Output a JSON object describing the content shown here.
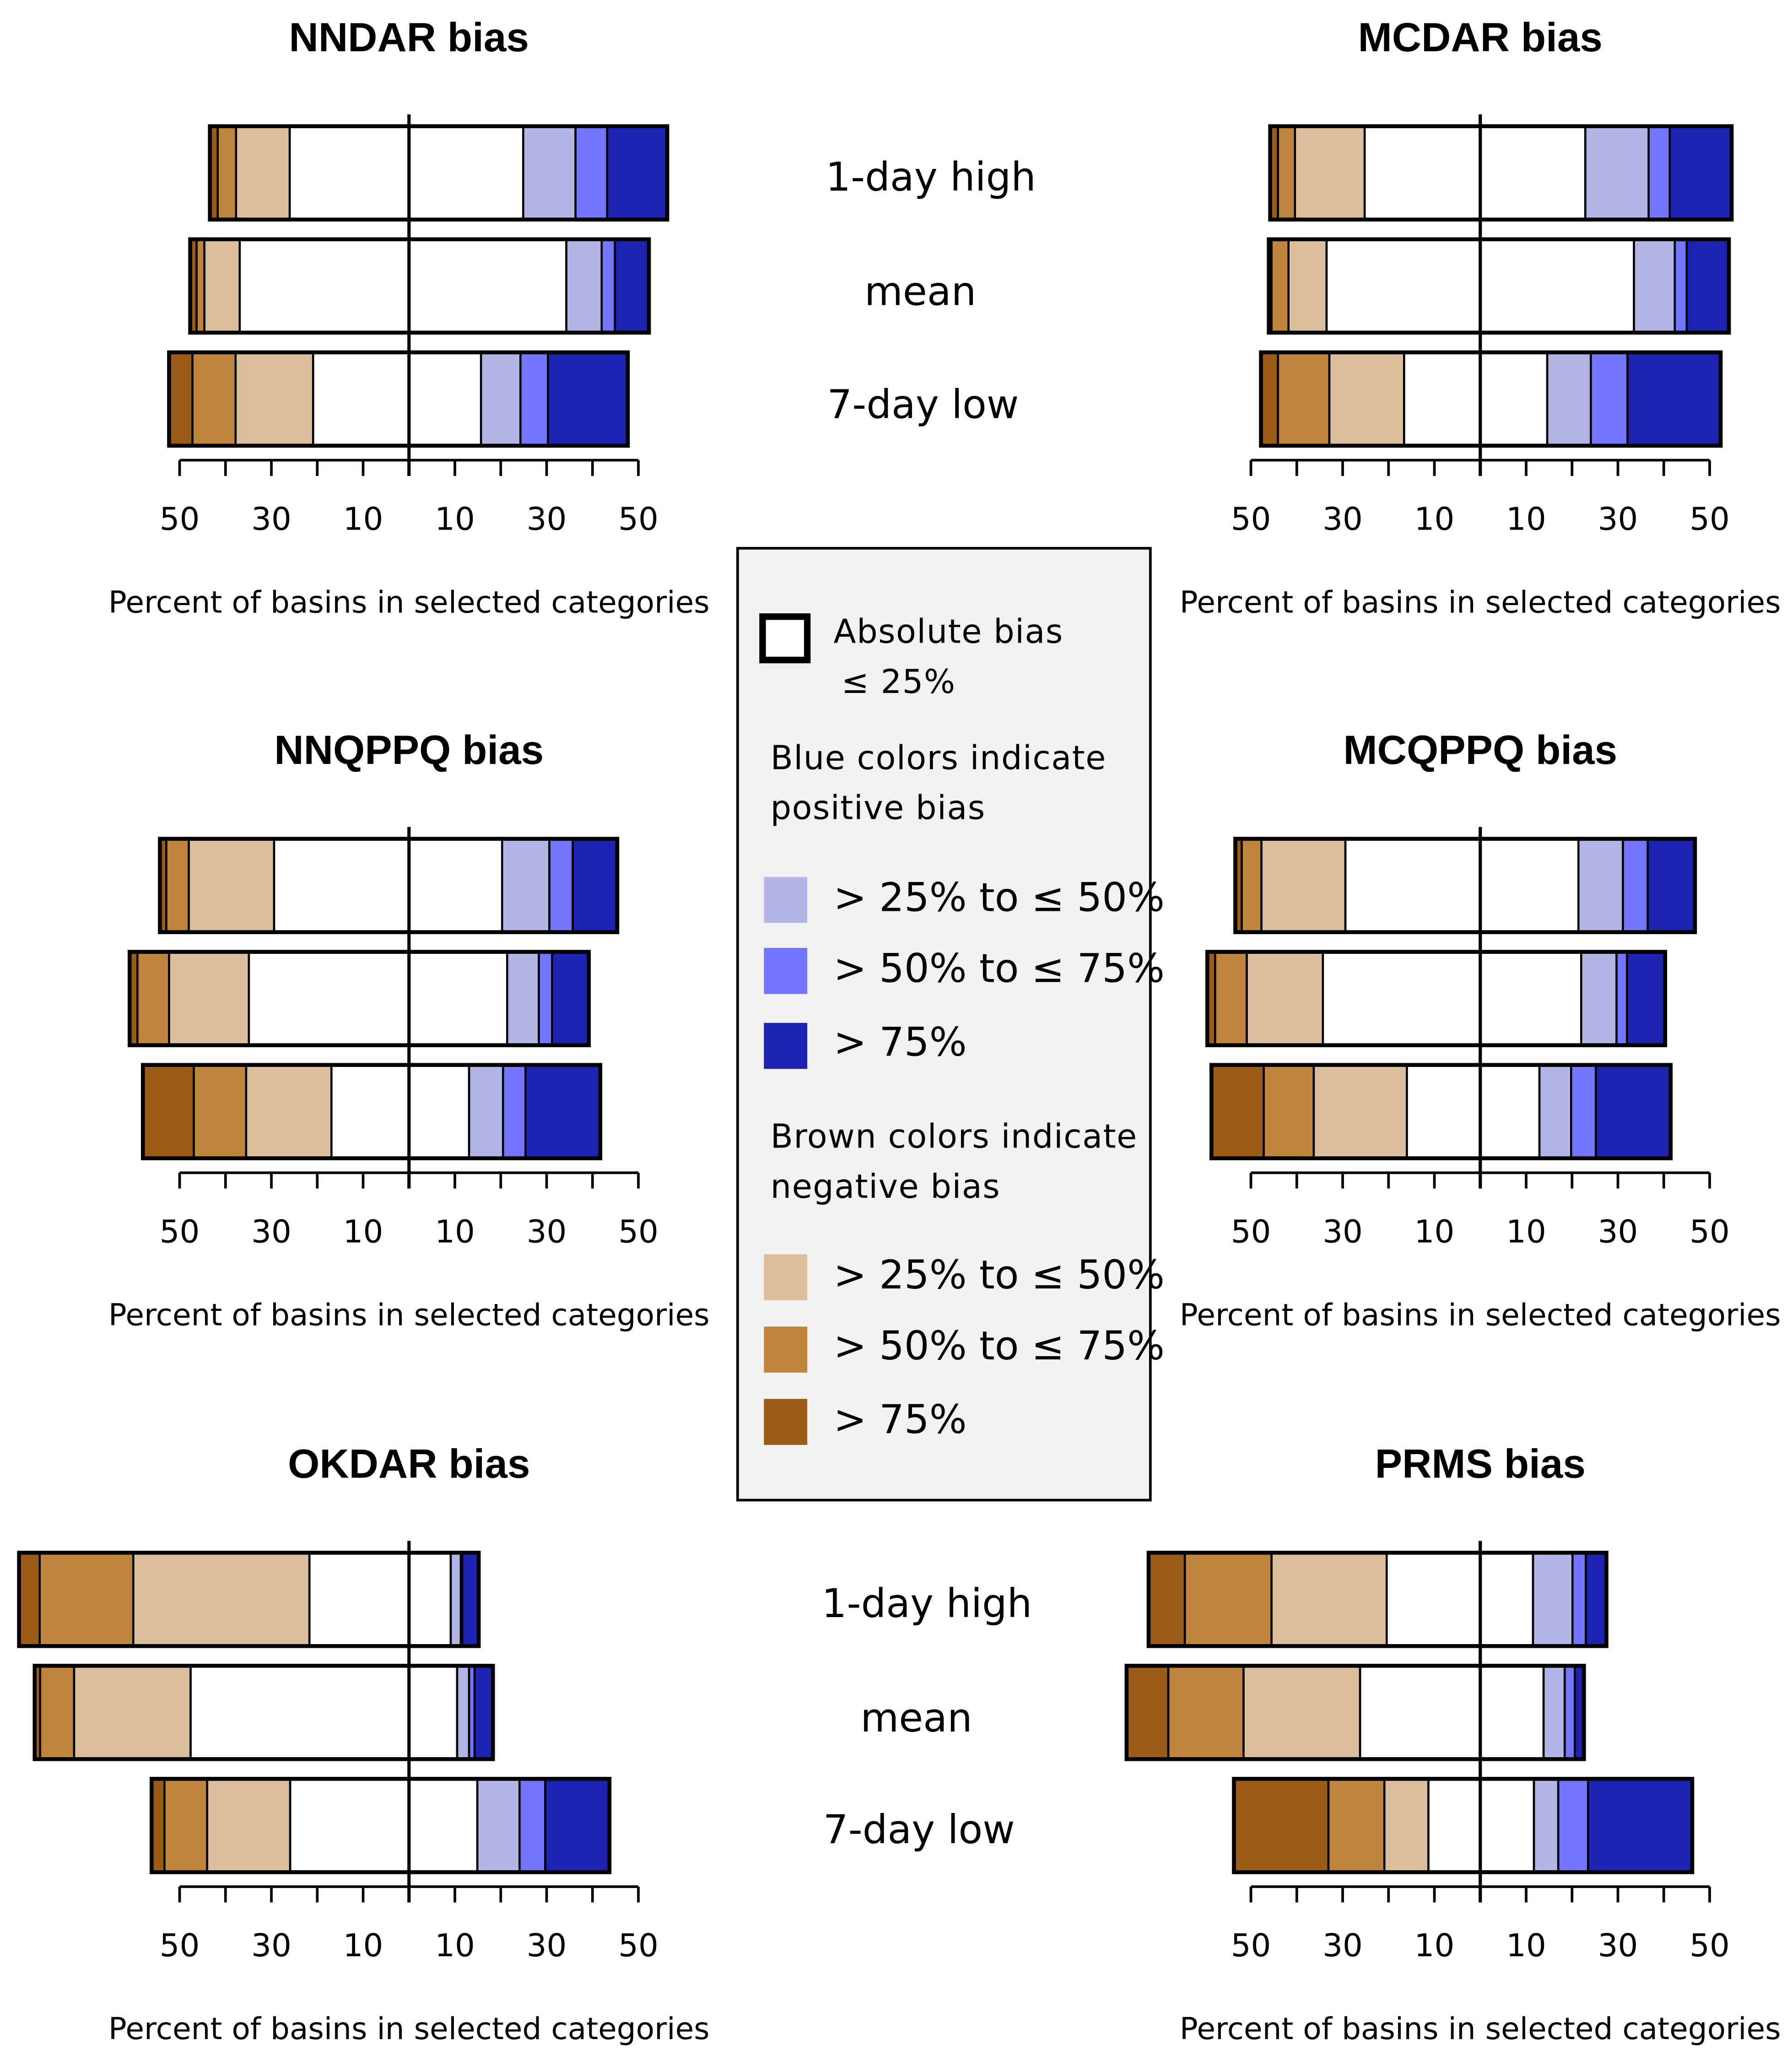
{
  "colors": {
    "neg_gt75": "#9a5c18",
    "neg_50_75": "#c0843d",
    "neg_25_50": "#dbbf9c",
    "abs_le25": "#ffffff",
    "pos_25_50": "#b3b5e5",
    "pos_50_75": "#7375ff",
    "pos_gt75": "#1d22b0",
    "legend_bg": "#f2f2f2"
  },
  "legend": {
    "absolute_line1": "Absolute bias",
    "absolute_line2": "≤ 25%",
    "blue_head_line1": "Blue colors indicate",
    "blue_head_line2": "positive bias",
    "blue_items": [
      "> 25% to ≤ 50%",
      "> 50% to ≤ 75%",
      "> 75%"
    ],
    "brown_head_line1": "Brown colors indicate",
    "brown_head_line2": "negative bias",
    "brown_items": [
      "> 25% to ≤ 50%",
      "> 50% to ≤ 75%",
      "> 75%"
    ]
  },
  "chart_data": [
    {
      "type": "bar",
      "orientation": "horizontal-diverging-stacked",
      "title": "NNDAR bias",
      "xlabel": "Percent of basins in selected categories",
      "xlim": [
        -50,
        50
      ],
      "tick_labels": [
        "50",
        "30",
        "10",
        "10",
        "30",
        "50"
      ],
      "categories": [
        "1-day high",
        "mean",
        "7-day low"
      ],
      "segment_order_negative": [
        ">75%",
        ">50% to ≤75%",
        ">25% to ≤50%",
        "≤25%"
      ],
      "segment_order_positive": [
        "≤25%",
        ">25% to ≤50%",
        ">50% to ≤75%",
        ">75%"
      ],
      "negative": [
        [
          1.7,
          4.0,
          11.7,
          26.0
        ],
        [
          1.4,
          1.7,
          7.7,
          36.9
        ],
        [
          5.1,
          9.4,
          16.9,
          20.9
        ]
      ],
      "positive": [
        [
          24.9,
          11.4,
          6.9,
          13.1
        ],
        [
          34.3,
          7.7,
          2.9,
          7.4
        ],
        [
          15.7,
          8.6,
          6.0,
          17.4
        ]
      ]
    },
    {
      "type": "bar",
      "orientation": "horizontal-diverging-stacked",
      "title": "MCDAR bias",
      "xlabel": "Percent of basins in selected categories",
      "xlim": [
        -50,
        50
      ],
      "tick_labels": [
        "50",
        "30",
        "10",
        "10",
        "30",
        "50"
      ],
      "categories": [
        "1-day high",
        "mean",
        "7-day low"
      ],
      "negative": [
        [
          1.7,
          3.7,
          15.2,
          25.2
        ],
        [
          0.6,
          3.7,
          8.3,
          33.5
        ],
        [
          3.7,
          11.2,
          16.3,
          16.6
        ]
      ],
      "positive": [
        [
          22.9,
          13.8,
          4.6,
          13.5
        ],
        [
          33.5,
          8.9,
          2.6,
          9.2
        ],
        [
          14.6,
          9.5,
          8.0,
          20.3
        ]
      ]
    },
    {
      "type": "bar",
      "orientation": "horizontal-diverging-stacked",
      "title": "NNQPPQ bias",
      "xlabel": "Percent of basins in selected categories",
      "xlim": [
        -50,
        50
      ],
      "tick_labels": [
        "50",
        "30",
        "10",
        "10",
        "30",
        "50"
      ],
      "categories": [
        "1-day high",
        "mean",
        "7-day low"
      ],
      "negative": [
        [
          1.4,
          4.9,
          18.6,
          29.4
        ],
        [
          1.7,
          6.9,
          17.4,
          34.9
        ],
        [
          11.1,
          11.4,
          18.6,
          16.9
        ]
      ],
      "positive": [
        [
          20.3,
          10.3,
          5.1,
          9.7
        ],
        [
          21.4,
          6.9,
          2.9,
          8.0
        ],
        [
          13.1,
          7.4,
          4.9,
          16.3
        ]
      ]
    },
    {
      "type": "bar",
      "orientation": "horizontal-diverging-stacked",
      "title": "MCQPPQ bias",
      "xlabel": "Percent of basins in selected categories",
      "xlim": [
        -50,
        50
      ],
      "tick_labels": [
        "50",
        "30",
        "10",
        "10",
        "30",
        "50"
      ],
      "categories": [
        "1-day high",
        "mean",
        "7-day low"
      ],
      "negative": [
        [
          1.4,
          4.3,
          18.3,
          29.4
        ],
        [
          1.7,
          6.9,
          16.6,
          34.3
        ],
        [
          11.4,
          10.9,
          20.3,
          16.0
        ]
      ],
      "positive": [
        [
          21.4,
          9.7,
          5.4,
          10.3
        ],
        [
          22.0,
          7.7,
          2.3,
          8.3
        ],
        [
          12.9,
          6.9,
          5.4,
          16.3
        ]
      ]
    },
    {
      "type": "bar",
      "orientation": "horizontal-diverging-stacked",
      "title": "OKDAR bias",
      "xlabel": "Percent of basins in selected categories",
      "xlim": [
        -50,
        50
      ],
      "tick_labels": [
        "50",
        "30",
        "10",
        "10",
        "30",
        "50"
      ],
      "categories": [
        "1-day high",
        "mean",
        "7-day low"
      ],
      "negative": [
        [
          4.5,
          20.4,
          38.4,
          21.7
        ],
        [
          1.2,
          7.4,
          25.4,
          47.6
        ],
        [
          2.8,
          9.3,
          18.1,
          25.9
        ]
      ],
      "positive": [
        [
          9.1,
          2.2,
          0.3,
          3.6
        ],
        [
          10.5,
          2.6,
          1.2,
          4.0
        ],
        [
          14.9,
          9.2,
          5.6,
          14.0
        ]
      ]
    },
    {
      "type": "bar",
      "orientation": "horizontal-diverging-stacked",
      "title": "PRMS bias",
      "xlabel": "Percent of basins in selected categories",
      "xlim": [
        -50,
        50
      ],
      "tick_labels": [
        "50",
        "30",
        "10",
        "10",
        "30",
        "50"
      ],
      "categories": [
        "1-day high",
        "mean",
        "7-day low"
      ],
      "negative": [
        [
          7.9,
          18.9,
          25.1,
          20.4
        ],
        [
          9.1,
          16.4,
          25.4,
          26.2
        ],
        [
          20.6,
          12.2,
          9.6,
          11.3
        ]
      ],
      "positive": [
        [
          11.5,
          8.6,
          2.9,
          4.5
        ],
        [
          13.8,
          4.6,
          2.2,
          2.0
        ],
        [
          11.7,
          5.3,
          6.5,
          22.7
        ]
      ]
    }
  ]
}
